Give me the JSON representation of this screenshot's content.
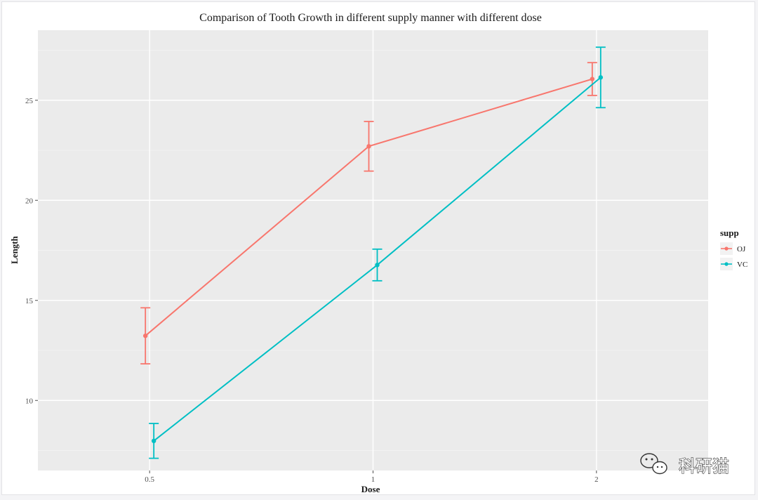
{
  "chart_data": {
    "type": "line",
    "title": "Comparison of Tooth Growth in different supply manner with different dose",
    "xlabel": "Dose",
    "ylabel": "Length",
    "x": [
      0.5,
      1,
      2
    ],
    "x_tick_labels": [
      "0.5",
      "1",
      "2"
    ],
    "y_ticks": [
      10,
      15,
      20,
      25
    ],
    "ylim": [
      6.5,
      28.5
    ],
    "grid": true,
    "legend": {
      "title": "supp",
      "placement": "right"
    },
    "error_bars": true,
    "series": [
      {
        "name": "OJ",
        "color": "#F8766D",
        "values": [
          13.23,
          22.7,
          26.06
        ],
        "err_low": [
          11.83,
          21.46,
          25.24
        ],
        "err_high": [
          14.63,
          23.94,
          26.88
        ]
      },
      {
        "name": "VC",
        "color": "#00BFC4",
        "values": [
          7.98,
          16.77,
          26.14
        ],
        "err_low": [
          7.11,
          15.98,
          24.63
        ],
        "err_high": [
          8.85,
          17.56,
          27.65
        ]
      }
    ]
  },
  "watermark": {
    "text": "科研猫",
    "icon": "wechat-icon"
  }
}
